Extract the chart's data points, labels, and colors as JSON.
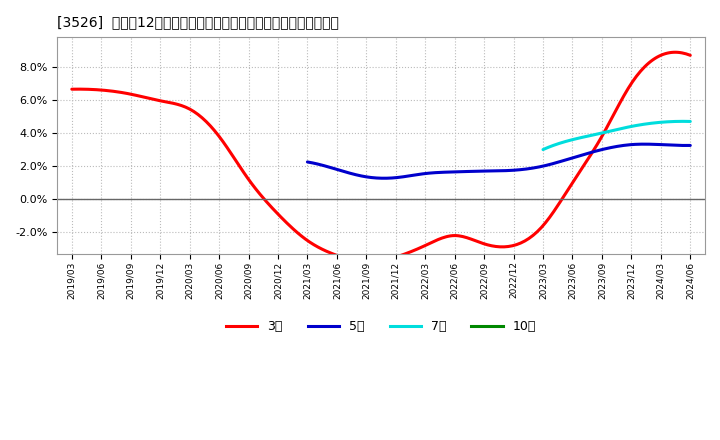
{
  "title": "[3526]  売上高12か月移動合計の対前年同期増減率の平均値の推移",
  "background_color": "#ffffff",
  "plot_bg_color": "#ffffff",
  "grid_color": "#bbbbbb",
  "ylim": [
    -0.033,
    0.098
  ],
  "yticks": [
    -0.02,
    0.0,
    0.02,
    0.04,
    0.06,
    0.08
  ],
  "x_labels": [
    "2019/03",
    "2019/06",
    "2019/09",
    "2019/12",
    "2020/03",
    "2020/06",
    "2020/09",
    "2020/12",
    "2021/03",
    "2021/06",
    "2021/09",
    "2021/12",
    "2022/03",
    "2022/06",
    "2022/09",
    "2022/12",
    "2023/03",
    "2023/06",
    "2023/09",
    "2023/12",
    "2024/03",
    "2024/06"
  ],
  "series_3y": {
    "color": "#ff0000",
    "label": "3年",
    "x_indices": [
      0,
      1,
      2,
      3,
      4,
      5,
      6,
      7,
      8,
      9,
      10,
      11,
      12,
      13,
      14,
      15,
      16,
      17,
      18,
      19,
      20,
      21
    ],
    "values": [
      0.0665,
      0.066,
      0.0635,
      0.0595,
      0.0545,
      0.038,
      0.012,
      -0.009,
      -0.025,
      -0.034,
      -0.038,
      -0.035,
      -0.028,
      -0.022,
      -0.027,
      -0.028,
      -0.016,
      0.01,
      0.038,
      0.07,
      0.087,
      0.087
    ]
  },
  "series_5y": {
    "color": "#0000cc",
    "label": "5年",
    "x_indices": [
      8,
      9,
      10,
      11,
      12,
      13,
      14,
      15,
      16,
      17,
      18,
      19,
      20,
      21
    ],
    "values": [
      0.0225,
      0.018,
      0.0135,
      0.013,
      0.0155,
      0.0165,
      0.017,
      0.0175,
      0.02,
      0.025,
      0.03,
      0.033,
      0.033,
      0.0325
    ]
  },
  "series_7y": {
    "color": "#00dddd",
    "label": "7年",
    "x_indices": [
      16,
      17,
      18,
      19,
      20,
      21
    ],
    "values": [
      0.03,
      0.036,
      0.04,
      0.044,
      0.0465,
      0.047
    ]
  },
  "series_10y": {
    "color": "#008800",
    "label": "10年",
    "x_indices": [],
    "values": []
  },
  "legend_items": [
    "3年",
    "5年",
    "7年",
    "10年"
  ],
  "legend_colors": [
    "#ff0000",
    "#0000cc",
    "#00dddd",
    "#008800"
  ]
}
